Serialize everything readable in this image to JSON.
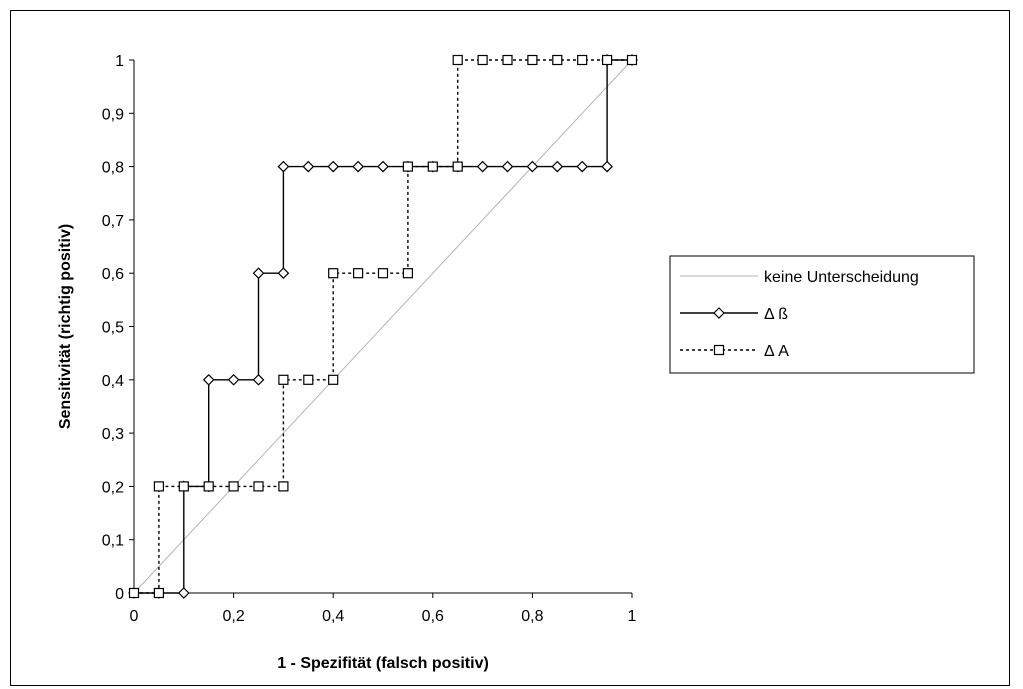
{
  "chart_data": {
    "type": "line",
    "xlabel": "1 - Spezifität (falsch positiv)",
    "ylabel": "Sensitivität (richtig positiv)",
    "xlim": [
      0,
      1
    ],
    "ylim": [
      0,
      1
    ],
    "x_ticks": [
      "0",
      "0,2",
      "0,4",
      "0,6",
      "0,8",
      "1"
    ],
    "y_ticks": [
      "0",
      "0,1",
      "0,2",
      "0,3",
      "0,4",
      "0,5",
      "0,6",
      "0,7",
      "0,8",
      "0,9",
      "1"
    ],
    "grid": false,
    "legend_position": "right",
    "series": [
      {
        "name": "keine Unterscheidung",
        "style": "line",
        "color": "#b4b4b4",
        "x": [
          0,
          1
        ],
        "y": [
          0,
          1
        ]
      },
      {
        "name": "Δ ß",
        "style": "solid-diamond",
        "color": "#000000",
        "x": [
          0,
          0.05,
          0.1,
          0.1,
          0.15,
          0.15,
          0.2,
          0.25,
          0.25,
          0.3,
          0.3,
          0.35,
          0.4,
          0.45,
          0.5,
          0.55,
          0.6,
          0.65,
          0.7,
          0.75,
          0.8,
          0.85,
          0.9,
          0.95,
          0.95,
          1
        ],
        "y": [
          0,
          0,
          0,
          0.2,
          0.2,
          0.4,
          0.4,
          0.4,
          0.6,
          0.6,
          0.8,
          0.8,
          0.8,
          0.8,
          0.8,
          0.8,
          0.8,
          0.8,
          0.8,
          0.8,
          0.8,
          0.8,
          0.8,
          0.8,
          1,
          1
        ]
      },
      {
        "name": "Δ A",
        "style": "dashed-square",
        "color": "#000000",
        "x": [
          0,
          0.05,
          0.05,
          0.1,
          0.15,
          0.2,
          0.25,
          0.3,
          0.3,
          0.35,
          0.4,
          0.4,
          0.45,
          0.5,
          0.55,
          0.55,
          0.6,
          0.65,
          0.65,
          0.7,
          0.75,
          0.8,
          0.85,
          0.9,
          0.95,
          1
        ],
        "y": [
          0,
          0,
          0.2,
          0.2,
          0.2,
          0.2,
          0.2,
          0.2,
          0.4,
          0.4,
          0.4,
          0.6,
          0.6,
          0.6,
          0.6,
          0.8,
          0.8,
          0.8,
          1,
          1,
          1,
          1,
          1,
          1,
          1,
          1
        ]
      }
    ]
  }
}
